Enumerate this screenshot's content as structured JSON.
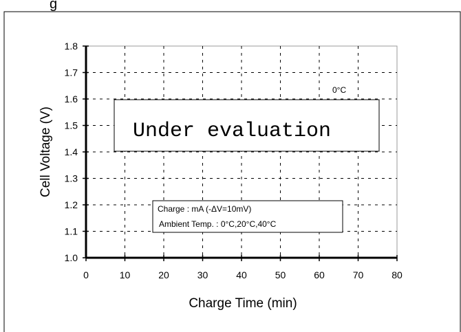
{
  "header_fragment": "g",
  "chart_data": {
    "type": "line",
    "title": "",
    "xlabel": "Charge Time (min)",
    "ylabel": "Cell Voltage (V)",
    "xlim": [
      0,
      80
    ],
    "ylim": [
      1.0,
      1.8
    ],
    "x_ticks": [
      "0",
      "10",
      "20",
      "30",
      "40",
      "50",
      "60",
      "70",
      "80"
    ],
    "y_ticks": [
      "1.0",
      "1.1",
      "1.2",
      "1.3",
      "1.4",
      "1.5",
      "1.6",
      "1.7",
      "1.8"
    ],
    "grid": true,
    "series": [],
    "annotations": {
      "curve_label": "0°C",
      "evaluation_notice": "Under evaluation",
      "conditions_line1": "Charge : mA (-ΔV=10mV)",
      "conditions_line2": "Ambient Temp. : 0°C,20°C,40°C"
    }
  }
}
